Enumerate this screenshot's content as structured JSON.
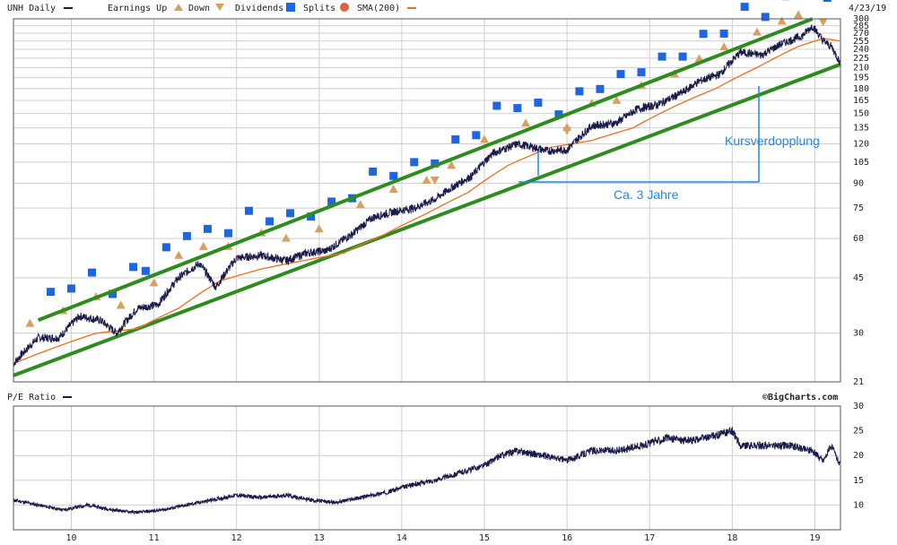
{
  "header": {
    "symbol_label": "UNH Daily",
    "earnings_up_label": "Earnings Up",
    "down_label": "Down",
    "dividends_label": "Dividends",
    "splits_label": "Splits",
    "sma_label": "SMA(200)",
    "date": "4/23/19",
    "lower_title": "P/E Ratio",
    "copyright": "©BigCharts.com"
  },
  "colors": {
    "price": "#1a1a4a",
    "sma": "#f07020",
    "channel": "#2e8b1e",
    "annotation": "#1e88e5",
    "earnings": "#d8a060",
    "dividend": "#1e66e0",
    "split": "#e06040"
  },
  "annotations": {
    "doubling": "Kursverdopplung",
    "duration": "Ca. 3 Jahre"
  },
  "chart_data": [
    {
      "type": "line",
      "name": "price",
      "y_scale": "log",
      "ylim": [
        21,
        300
      ],
      "xlim": [
        2009.3,
        2019.31
      ],
      "x_ticks": [
        2010,
        2011,
        2012,
        2013,
        2014,
        2015,
        2016,
        2017,
        2018,
        2019
      ],
      "x_tick_labels": [
        "10",
        "11",
        "12",
        "13",
        "14",
        "15",
        "16",
        "17",
        "18",
        "19"
      ],
      "y_ticks": [
        21,
        30,
        45,
        60,
        75,
        90,
        105,
        120,
        135,
        150,
        165,
        180,
        195,
        210,
        225,
        240,
        255,
        270,
        285,
        300
      ],
      "grid": true,
      "series": [
        {
          "name": "UNH Daily",
          "x": [
            2009.3,
            2009.6,
            2009.85,
            2010.1,
            2010.35,
            2010.55,
            2010.8,
            2011.05,
            2011.3,
            2011.55,
            2011.75,
            2012.0,
            2012.3,
            2012.6,
            2012.85,
            2013.1,
            2013.4,
            2013.65,
            2013.9,
            2014.15,
            2014.4,
            2014.6,
            2014.85,
            2015.1,
            2015.4,
            2015.6,
            2015.75,
            2016.0,
            2016.3,
            2016.6,
            2016.85,
            2017.1,
            2017.4,
            2017.6,
            2017.85,
            2018.1,
            2018.35,
            2018.6,
            2018.85,
            2018.97,
            2019.1,
            2019.2,
            2019.31
          ],
          "y": [
            24,
            29,
            29,
            34,
            33,
            30,
            36,
            37,
            45,
            50,
            42,
            52,
            53,
            51,
            54,
            55,
            62,
            70,
            73,
            75,
            80,
            87,
            95,
            112,
            120,
            117,
            114,
            115,
            137,
            140,
            155,
            160,
            175,
            190,
            200,
            235,
            230,
            250,
            265,
            285,
            255,
            245,
            216
          ]
        },
        {
          "name": "SMA(200)",
          "x": [
            2009.3,
            2009.8,
            2010.3,
            2010.8,
            2011.3,
            2011.8,
            2012.3,
            2012.8,
            2013.3,
            2013.8,
            2014.3,
            2014.8,
            2015.3,
            2015.8,
            2016.3,
            2016.8,
            2017.3,
            2017.8,
            2018.3,
            2018.8,
            2019.1,
            2019.31
          ],
          "y": [
            24,
            27,
            30,
            31,
            36,
            44,
            48,
            51,
            54,
            62,
            72,
            84,
            103,
            117,
            123,
            135,
            158,
            180,
            210,
            245,
            260,
            255
          ]
        }
      ],
      "channel_lines": [
        {
          "x": [
            2009.3,
            2019.31
          ],
          "y": [
            22,
            215
          ]
        },
        {
          "x": [
            2009.6,
            2018.97
          ],
          "y": [
            33,
            300
          ]
        }
      ],
      "earnings_up": [
        2009.5,
        2009.9,
        2010.3,
        2010.6,
        2011.0,
        2011.3,
        2011.6,
        2011.9,
        2012.3,
        2012.6,
        2013.0,
        2013.5,
        2013.9,
        2014.3,
        2014.6,
        2015.0,
        2015.5,
        2016.0,
        2016.3,
        2016.6,
        2016.9,
        2017.3,
        2017.6,
        2017.9,
        2018.3,
        2018.6,
        2018.8
      ],
      "earnings_down": [
        2014.4,
        2016.0,
        2019.1
      ],
      "dividends": [
        2009.75,
        2010.0,
        2010.25,
        2010.5,
        2010.75,
        2010.9,
        2011.15,
        2011.4,
        2011.65,
        2011.9,
        2012.15,
        2012.4,
        2012.65,
        2012.9,
        2013.15,
        2013.4,
        2013.65,
        2013.9,
        2014.15,
        2014.4,
        2014.65,
        2014.9,
        2015.15,
        2015.4,
        2015.65,
        2015.9,
        2016.15,
        2016.4,
        2016.65,
        2016.9,
        2017.15,
        2017.4,
        2017.65,
        2017.9,
        2018.15,
        2018.4,
        2018.65,
        2018.9,
        2019.15
      ]
    },
    {
      "type": "line",
      "name": "P/E Ratio",
      "ylim": [
        5,
        30
      ],
      "y_ticks": [
        10,
        15,
        20,
        25,
        30
      ],
      "series": [
        {
          "name": "P/E Ratio",
          "x": [
            2009.3,
            2009.6,
            2009.9,
            2010.2,
            2010.5,
            2010.8,
            2011.1,
            2011.4,
            2011.7,
            2012.0,
            2012.3,
            2012.6,
            2012.9,
            2013.2,
            2013.5,
            2013.8,
            2014.1,
            2014.4,
            2014.7,
            2015.0,
            2015.2,
            2015.4,
            2015.7,
            2016.0,
            2016.3,
            2016.6,
            2016.9,
            2017.2,
            2017.5,
            2017.8,
            2018.0,
            2018.1,
            2018.4,
            2018.7,
            2018.97,
            2019.1,
            2019.2,
            2019.31
          ],
          "y": [
            11,
            10,
            9,
            10,
            9,
            8.5,
            9,
            10,
            11,
            12,
            11.5,
            12,
            11,
            10.5,
            11.5,
            12.5,
            14,
            15,
            16.5,
            18,
            20,
            21,
            20,
            19,
            21,
            21,
            22,
            23.5,
            23,
            24,
            25,
            22,
            22,
            22,
            21,
            19,
            22,
            18
          ]
        }
      ]
    }
  ]
}
